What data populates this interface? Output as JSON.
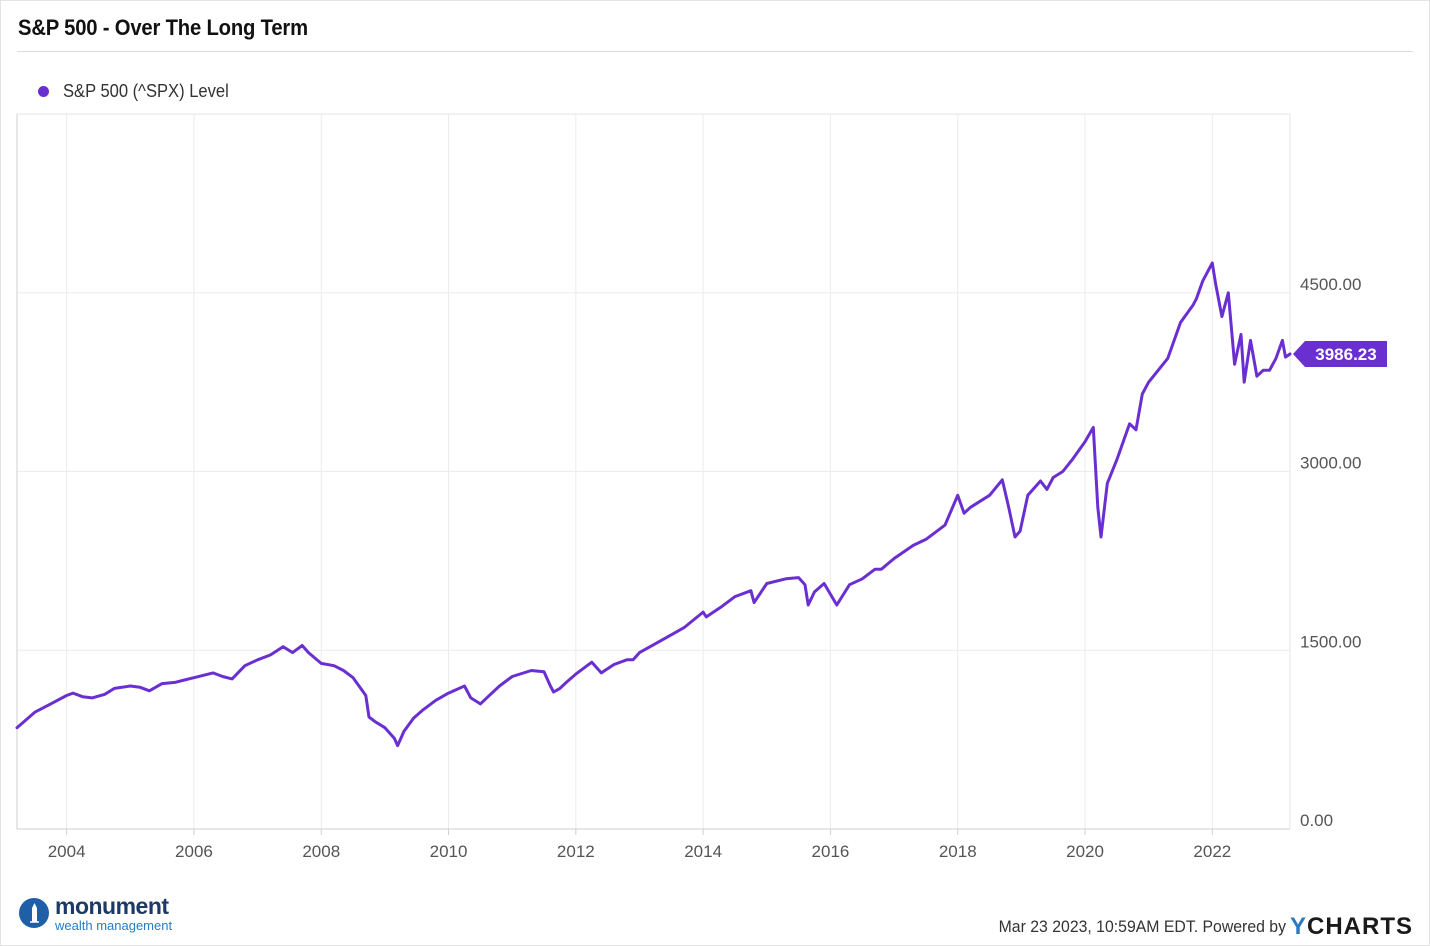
{
  "header": {
    "title": "S&P 500 - Over The Long Term"
  },
  "legend": {
    "label": "S&P 500 (^SPX) Level",
    "color": "#6a2fd1"
  },
  "chart_data": {
    "type": "line",
    "title": "S&P 500 - Over The Long Term",
    "xlabel": "",
    "ylabel": "",
    "x_tick_labels": [
      "2004",
      "2006",
      "2008",
      "2010",
      "2012",
      "2014",
      "2016",
      "2018",
      "2020",
      "2022"
    ],
    "y_tick_labels": [
      "0.00",
      "1500.00",
      "3000.00",
      "4500.00"
    ],
    "ylim": [
      0,
      6000
    ],
    "x_range": [
      2003.22,
      2023.22
    ],
    "grid": true,
    "legend_position": "top-left",
    "line_color": "#6a2fd1",
    "last_value_label": "3986.23",
    "series": [
      {
        "name": "S&P 500 (^SPX) Level",
        "x": [
          2003.22,
          2003.5,
          2003.75,
          2004.0,
          2004.1,
          2004.25,
          2004.4,
          2004.6,
          2004.75,
          2005.0,
          2005.15,
          2005.3,
          2005.5,
          2005.7,
          2005.85,
          2006.0,
          2006.3,
          2006.45,
          2006.6,
          2006.8,
          2007.0,
          2007.2,
          2007.4,
          2007.55,
          2007.7,
          2007.8,
          2008.0,
          2008.2,
          2008.35,
          2008.5,
          2008.7,
          2008.75,
          2008.85,
          2009.0,
          2009.15,
          2009.2,
          2009.3,
          2009.45,
          2009.6,
          2009.8,
          2010.0,
          2010.25,
          2010.35,
          2010.5,
          2010.6,
          2010.8,
          2011.0,
          2011.3,
          2011.5,
          2011.6,
          2011.65,
          2011.75,
          2011.85,
          2012.0,
          2012.25,
          2012.4,
          2012.6,
          2012.8,
          2012.9,
          2013.0,
          2013.3,
          2013.5,
          2013.7,
          2014.0,
          2014.05,
          2014.3,
          2014.5,
          2014.75,
          2014.8,
          2015.0,
          2015.3,
          2015.5,
          2015.6,
          2015.65,
          2015.75,
          2015.9,
          2016.1,
          2016.3,
          2016.5,
          2016.7,
          2016.8,
          2017.0,
          2017.3,
          2017.5,
          2017.8,
          2018.0,
          2018.1,
          2018.2,
          2018.35,
          2018.5,
          2018.7,
          2018.8,
          2018.9,
          2018.98,
          2019.1,
          2019.3,
          2019.4,
          2019.5,
          2019.65,
          2019.8,
          2020.0,
          2020.13,
          2020.2,
          2020.25,
          2020.35,
          2020.5,
          2020.6,
          2020.7,
          2020.8,
          2020.9,
          2021.0,
          2021.3,
          2021.5,
          2021.7,
          2021.75,
          2021.85,
          2022.0,
          2022.05,
          2022.15,
          2022.25,
          2022.35,
          2022.45,
          2022.5,
          2022.6,
          2022.7,
          2022.8,
          2022.9,
          2023.0,
          2023.1,
          2023.15,
          2023.22
        ],
        "y": [
          850,
          980,
          1050,
          1120,
          1140,
          1110,
          1100,
          1130,
          1180,
          1200,
          1190,
          1160,
          1220,
          1230,
          1250,
          1270,
          1310,
          1280,
          1260,
          1370,
          1420,
          1460,
          1530,
          1480,
          1540,
          1480,
          1390,
          1370,
          1330,
          1270,
          1120,
          940,
          900,
          850,
          760,
          700,
          820,
          930,
          1000,
          1080,
          1140,
          1200,
          1100,
          1050,
          1100,
          1200,
          1280,
          1330,
          1320,
          1200,
          1150,
          1180,
          1230,
          1300,
          1400,
          1310,
          1380,
          1420,
          1420,
          1480,
          1570,
          1630,
          1690,
          1820,
          1780,
          1870,
          1950,
          2000,
          1900,
          2060,
          2100,
          2110,
          2050,
          1880,
          1990,
          2060,
          1880,
          2050,
          2100,
          2180,
          2180,
          2270,
          2380,
          2430,
          2550,
          2800,
          2650,
          2700,
          2750,
          2800,
          2930,
          2700,
          2450,
          2500,
          2800,
          2920,
          2850,
          2950,
          3000,
          3100,
          3250,
          3370,
          2700,
          2450,
          2900,
          3100,
          3250,
          3400,
          3350,
          3650,
          3750,
          3950,
          4250,
          4400,
          4450,
          4600,
          4750,
          4580,
          4300,
          4500,
          3900,
          4150,
          3750,
          4100,
          3800,
          3850,
          3850,
          3950,
          4100,
          3960,
          3986.23
        ]
      }
    ]
  },
  "logo": {
    "name": "monument",
    "subtitle": "wealth management"
  },
  "footer": {
    "timestamp": "Mar 23 2023, 10:59AM EDT. Powered by",
    "brand_prefix": "Y",
    "brand_rest": "CHARTS"
  }
}
